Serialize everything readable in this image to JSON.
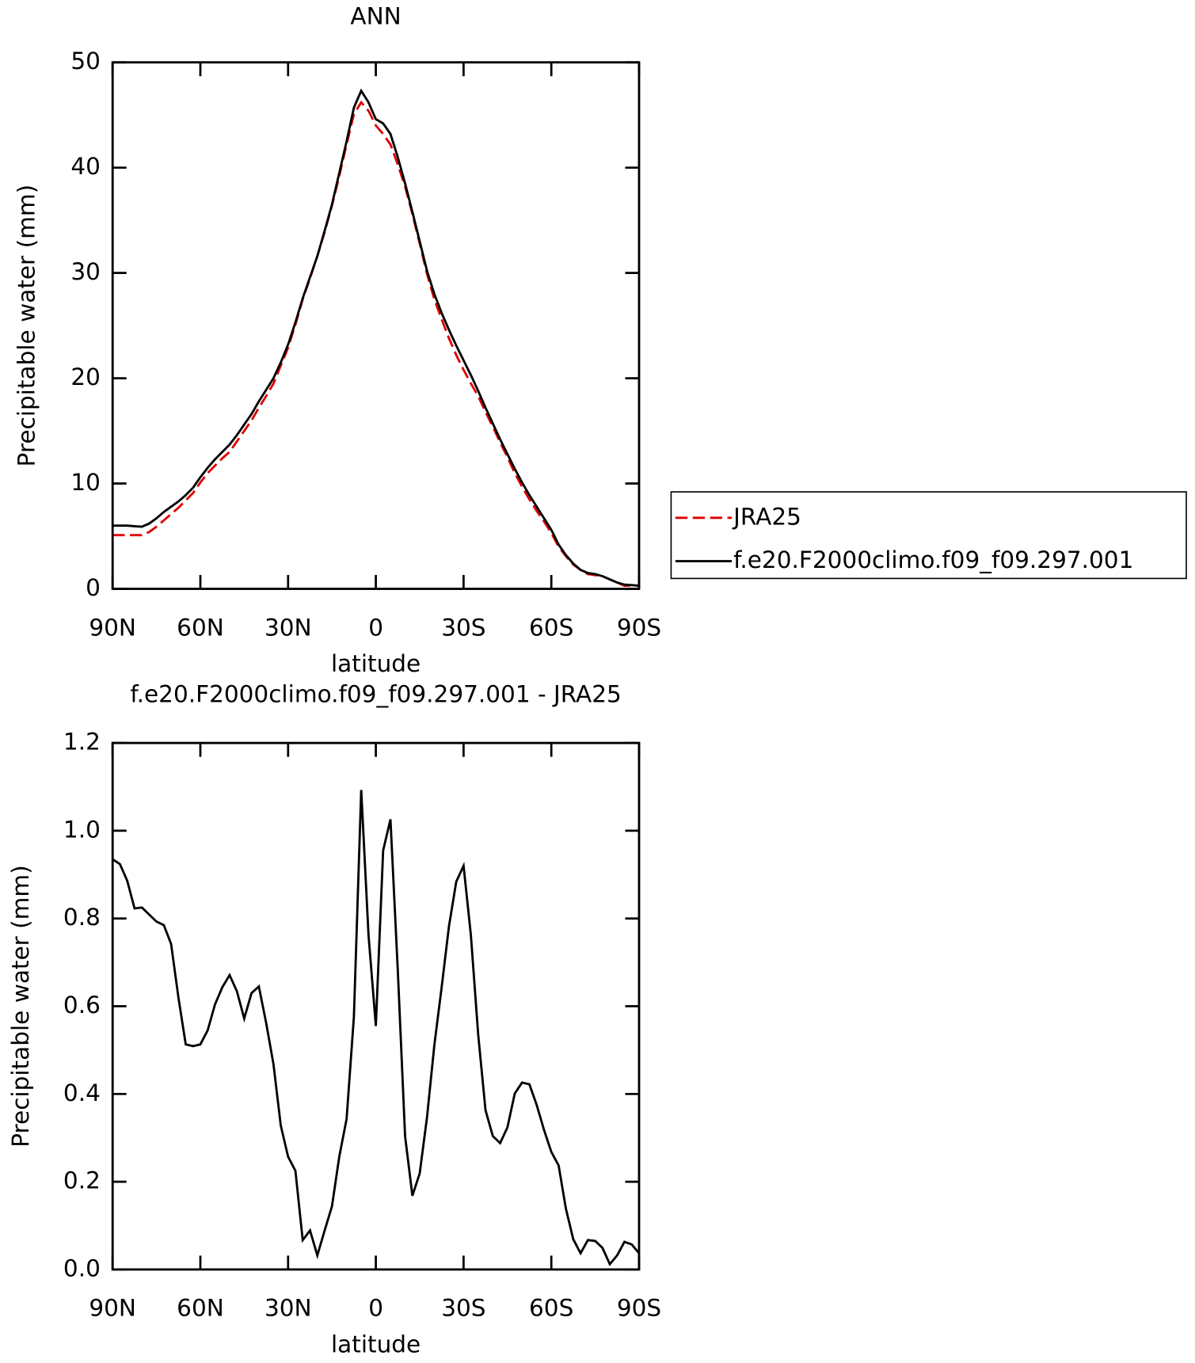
{
  "chart_data": [
    {
      "type": "line",
      "title": "ANN",
      "x_label": "latitude",
      "y_label": "Precipitable water (mm)",
      "x": [
        90,
        87.5,
        85,
        82.5,
        80,
        77.5,
        75,
        72.5,
        70,
        67.5,
        65,
        62.5,
        60,
        57.5,
        55,
        52.5,
        50,
        47.5,
        45,
        42.5,
        40,
        37.5,
        35,
        32.5,
        30,
        27.5,
        25,
        22.5,
        20,
        17.5,
        15,
        12.5,
        10,
        7.5,
        5,
        2.5,
        0,
        -2.5,
        -5,
        -7.5,
        -10,
        -12.5,
        -15,
        -17.5,
        -20,
        -22.5,
        -25,
        -27.5,
        -30,
        -32.5,
        -35,
        -37.5,
        -40,
        -42.5,
        -45,
        -47.5,
        -50,
        -52.5,
        -55,
        -57.5,
        -60,
        -62.5,
        -65,
        -67.5,
        -70,
        -72.5,
        -75,
        -77.5,
        -80,
        -82.5,
        -85,
        -87.5,
        -90
      ],
      "series": [
        {
          "name": "JRA25",
          "color": "#e00000",
          "line_style": "dashed",
          "values": [
            5.1,
            5.1,
            5.1,
            5.1,
            5.1,
            5.4,
            5.9,
            6.5,
            7.1,
            7.7,
            8.4,
            9.1,
            10.1,
            11.0,
            11.7,
            12.4,
            13.0,
            14.0,
            15.0,
            16.0,
            17.2,
            18.3,
            19.5,
            21.2,
            22.9,
            25.1,
            27.5,
            29.5,
            31.6,
            33.9,
            36.4,
            39.2,
            42.2,
            45.1,
            46.2,
            45.4,
            44.0,
            43.2,
            42.2,
            40.3,
            38.2,
            35.6,
            32.8,
            29.9,
            27.5,
            25.6,
            23.8,
            22.2,
            20.8,
            19.5,
            18.3,
            16.8,
            15.4,
            13.9,
            12.5,
            11.0,
            9.7,
            8.5,
            7.4,
            6.4,
            5.3,
            4.0,
            3.1,
            2.3,
            1.8,
            1.4,
            1.3,
            1.2,
            0.9,
            0.6,
            0.3,
            0.3,
            0.3
          ]
        },
        {
          "name": "f.e20.F2000climo.f09_f09.297.001",
          "color": "#000000",
          "line_style": "solid",
          "values": [
            6.0,
            6.0,
            6.0,
            5.95,
            5.9,
            6.2,
            6.7,
            7.3,
            7.8,
            8.3,
            8.9,
            9.6,
            10.6,
            11.5,
            12.3,
            13.0,
            13.7,
            14.6,
            15.6,
            16.6,
            17.8,
            18.9,
            20.0,
            21.5,
            23.2,
            25.3,
            27.6,
            29.6,
            31.6,
            34.0,
            36.5,
            39.5,
            42.5,
            45.7,
            47.3,
            46.2,
            44.6,
            44.2,
            43.2,
            41.0,
            38.5,
            35.8,
            33.0,
            30.2,
            28.0,
            26.2,
            24.6,
            23.1,
            21.7,
            20.3,
            18.8,
            17.2,
            15.7,
            14.2,
            12.8,
            11.4,
            10.1,
            8.9,
            7.8,
            6.7,
            5.6,
            4.2,
            3.2,
            2.4,
            1.8,
            1.5,
            1.4,
            1.2,
            0.9,
            0.6,
            0.4,
            0.35,
            0.3
          ]
        }
      ],
      "xlim": [
        90,
        -90
      ],
      "xticks": [
        {
          "value": 90,
          "label": "90N"
        },
        {
          "value": 60,
          "label": "60N"
        },
        {
          "value": 30,
          "label": "30N"
        },
        0,
        {
          "value": -30,
          "label": "30S"
        },
        {
          "value": -60,
          "label": "60S"
        },
        {
          "value": -90,
          "label": "90S"
        }
      ],
      "ylim": [
        0,
        50
      ],
      "yticks": [
        0,
        10,
        20,
        30,
        40,
        50
      ],
      "legend": "right"
    },
    {
      "type": "line",
      "title": "f.e20.F2000climo.f09_f09.297.001 - JRA25",
      "x_label": "latitude",
      "y_label": "Precipitable water (mm)",
      "x": [
        90,
        87.5,
        85,
        82.5,
        80,
        77.5,
        75,
        72.5,
        70,
        67.5,
        65,
        62.5,
        60,
        57.5,
        55,
        52.5,
        50,
        47.5,
        45,
        42.5,
        40,
        37.5,
        35,
        32.5,
        30,
        27.5,
        25,
        22.5,
        20,
        17.5,
        15,
        12.5,
        10,
        7.5,
        5,
        2.5,
        0,
        -2.5,
        -5,
        -7.5,
        -10,
        -12.5,
        -15,
        -17.5,
        -20,
        -22.5,
        -25,
        -27.5,
        -30,
        -32.5,
        -35,
        -37.5,
        -40,
        -42.5,
        -45,
        -47.5,
        -50,
        -52.5,
        -55,
        -57.5,
        -60,
        -62.5,
        -65,
        -67.5,
        -70,
        -72.5,
        -75,
        -77.5,
        -80,
        -82.5,
        -85,
        -87.5,
        -90
      ],
      "series": [
        {
          "color": "#000000",
          "line_style": "solid",
          "values": [
            0.935,
            0.924,
            0.886,
            0.823,
            0.825,
            0.809,
            0.793,
            0.785,
            0.742,
            0.62,
            0.513,
            0.509,
            0.513,
            0.545,
            0.604,
            0.643,
            0.671,
            0.634,
            0.572,
            0.63,
            0.645,
            0.562,
            0.468,
            0.328,
            0.257,
            0.225,
            0.067,
            0.089,
            0.032,
            0.089,
            0.144,
            0.257,
            0.343,
            0.576,
            1.093,
            0.762,
            0.555,
            0.955,
            1.026,
            0.683,
            0.304,
            0.168,
            0.219,
            0.347,
            0.511,
            0.643,
            0.782,
            0.884,
            0.92,
            0.762,
            0.535,
            0.363,
            0.304,
            0.288,
            0.324,
            0.401,
            0.426,
            0.422,
            0.375,
            0.318,
            0.268,
            0.237,
            0.138,
            0.069,
            0.037,
            0.067,
            0.065,
            0.049,
            0.012,
            0.032,
            0.063,
            0.057,
            0.037
          ]
        }
      ],
      "xlim": [
        90,
        -90
      ],
      "xticks": [
        {
          "value": 90,
          "label": "90N"
        },
        {
          "value": 60,
          "label": "60N"
        },
        {
          "value": 30,
          "label": "30N"
        },
        0,
        {
          "value": -30,
          "label": "30S"
        },
        {
          "value": -60,
          "label": "60S"
        },
        {
          "value": -90,
          "label": "90S"
        }
      ],
      "ylim": [
        0,
        1.2
      ],
      "yticks": [
        {
          "value": 0,
          "label": "0.0"
        },
        0.2,
        0.4,
        0.6,
        0.8,
        {
          "value": 1,
          "label": "1.0"
        },
        1.2
      ]
    }
  ]
}
